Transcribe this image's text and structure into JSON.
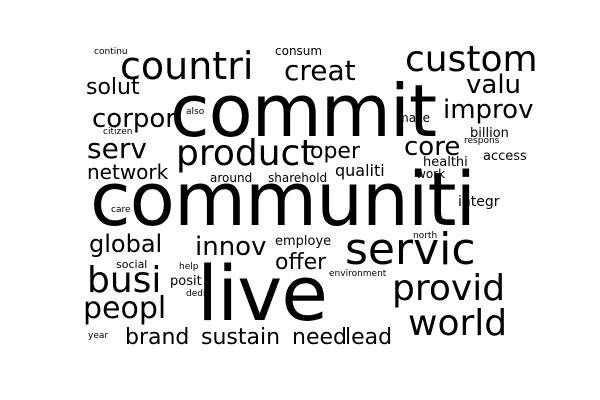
{
  "colors": {
    "background": "#ffffff",
    "text": "#000000"
  },
  "words": [
    "communiti",
    "commit",
    "live",
    "servic",
    "countri",
    "custom",
    "product",
    "provid",
    "world",
    "busi",
    "peopl",
    "creat",
    "valu",
    "improv",
    "corpor",
    "serv",
    "core",
    "oper",
    "network",
    "global",
    "innov",
    "offer",
    "solut",
    "qualiti",
    "brand",
    "sustain",
    "need",
    "lead",
    "integr",
    "employe",
    "around",
    "sharehold",
    "billion",
    "access",
    "healthi",
    "work",
    "make",
    "posit",
    "consum",
    "continu",
    "also",
    "citizen",
    "respons",
    "care",
    "social",
    "help",
    "dedic",
    "environment",
    "north",
    "year"
  ]
}
